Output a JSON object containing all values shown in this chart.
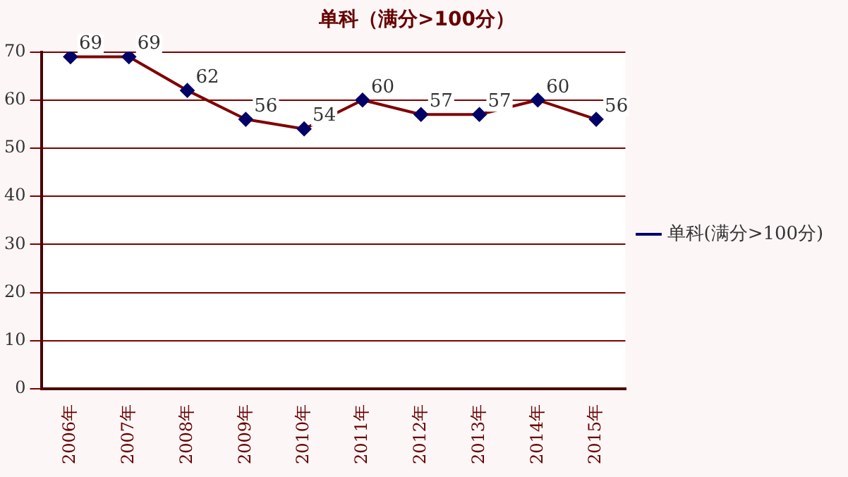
{
  "chart_data": {
    "type": "line",
    "title": "单科（满分>100分）",
    "categories": [
      "2006年",
      "2007年",
      "2008年",
      "2009年",
      "2010年",
      "2011年",
      "2012年",
      "2013年",
      "2014年",
      "2015年"
    ],
    "series": [
      {
        "name": "单科(满分>100分)",
        "color": "#800000",
        "values": [
          69,
          69,
          62,
          56,
          54,
          60,
          57,
          57,
          60,
          56
        ]
      }
    ],
    "ylim": [
      0,
      70
    ],
    "yticks": [
      0,
      10,
      20,
      30,
      40,
      50,
      60,
      70
    ],
    "grid": "y",
    "legend": "right",
    "marker": "diamond",
    "line_style": "solid",
    "data_labels": true
  }
}
